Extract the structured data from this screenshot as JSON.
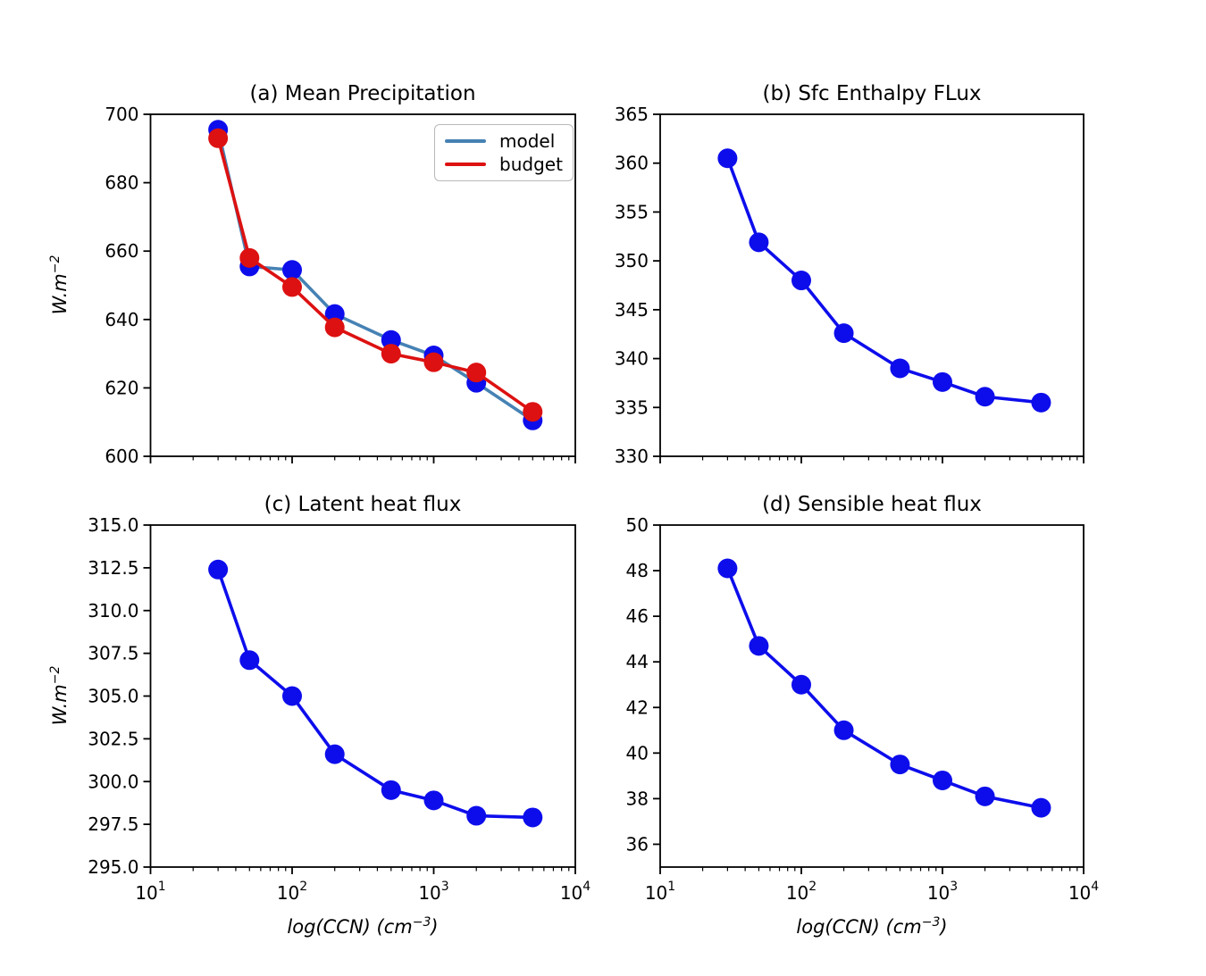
{
  "figure": {
    "background": "#ffffff"
  },
  "axes": {
    "x": {
      "scale": "log",
      "min": 10,
      "max": 10000,
      "major_ticks": [
        10,
        100,
        1000,
        10000
      ],
      "tick_base": "10",
      "tick_exponents": [
        "1",
        "2",
        "3",
        "4"
      ]
    },
    "xlabel": {
      "pre": "log(CCN) (cm",
      "sup": "−3",
      "post": ")"
    },
    "ylabel": {
      "pre": "W.m",
      "sup": "−2"
    }
  },
  "legend": {
    "items": [
      {
        "label": "model",
        "color": "#4682B4"
      },
      {
        "label": "budget",
        "color": "#DD1111"
      }
    ]
  },
  "colors": {
    "model_line": "#4682B4",
    "budget_line": "#DD1111",
    "blue_marker": "#0D0DEC",
    "text": "#000000"
  },
  "chart_data": [
    {
      "id": "a",
      "type": "line",
      "title": "(a) Mean Precipitation",
      "x": [
        30,
        50,
        100,
        200,
        500,
        1000,
        2000,
        5000
      ],
      "ylim": [
        600,
        700
      ],
      "yticks": [
        600,
        620,
        640,
        660,
        680,
        700
      ],
      "ytick_labels": [
        "600",
        "620",
        "640",
        "660",
        "680",
        "700"
      ],
      "series": [
        {
          "name": "model",
          "line_color": "#4682B4",
          "marker_color": "#0D0DEC",
          "values": [
            695.5,
            655.5,
            654.5,
            641.6,
            634.0,
            629.5,
            621.5,
            610.5
          ]
        },
        {
          "name": "budget",
          "line_color": "#DD1111",
          "marker_color": "#DD1111",
          "values": [
            693.0,
            658.0,
            649.5,
            637.7,
            630.0,
            627.5,
            624.5,
            613.0
          ]
        }
      ]
    },
    {
      "id": "b",
      "type": "line",
      "title": "(b) Sfc Enthalpy FLux",
      "x": [
        30,
        50,
        100,
        200,
        500,
        1000,
        2000,
        5000
      ],
      "ylim": [
        330,
        365
      ],
      "yticks": [
        330,
        335,
        340,
        345,
        350,
        355,
        360,
        365
      ],
      "ytick_labels": [
        "330",
        "335",
        "340",
        "345",
        "350",
        "355",
        "360",
        "365"
      ],
      "series": [
        {
          "name": "enthalpy",
          "line_color": "#0D0DEC",
          "marker_color": "#0D0DEC",
          "values": [
            360.5,
            351.9,
            348.0,
            342.6,
            339.0,
            337.6,
            336.1,
            335.5
          ]
        }
      ]
    },
    {
      "id": "c",
      "type": "line",
      "title": "(c) Latent heat flux",
      "x": [
        30,
        50,
        100,
        200,
        500,
        1000,
        2000,
        5000
      ],
      "ylim": [
        295,
        315
      ],
      "yticks": [
        295,
        297.5,
        300,
        302.5,
        305,
        307.5,
        310,
        312.5,
        315
      ],
      "ytick_labels": [
        "295.0",
        "297.5",
        "300.0",
        "302.5",
        "305.0",
        "307.5",
        "310.0",
        "312.5",
        "315.0"
      ],
      "series": [
        {
          "name": "latent",
          "line_color": "#0D0DEC",
          "marker_color": "#0D0DEC",
          "values": [
            312.4,
            307.1,
            305.0,
            301.6,
            299.5,
            298.9,
            298.0,
            297.9
          ]
        }
      ]
    },
    {
      "id": "d",
      "type": "line",
      "title": "(d) Sensible heat flux",
      "x": [
        30,
        50,
        100,
        200,
        500,
        1000,
        2000,
        5000
      ],
      "ylim": [
        35,
        50
      ],
      "yticks": [
        36,
        38,
        40,
        42,
        44,
        46,
        48,
        50
      ],
      "ytick_labels": [
        "36",
        "38",
        "40",
        "42",
        "44",
        "46",
        "48",
        "50"
      ],
      "series": [
        {
          "name": "sensible",
          "line_color": "#0D0DEC",
          "marker_color": "#0D0DEC",
          "values": [
            48.1,
            44.7,
            43.0,
            41.0,
            39.5,
            38.8,
            38.1,
            37.6
          ]
        }
      ]
    }
  ]
}
